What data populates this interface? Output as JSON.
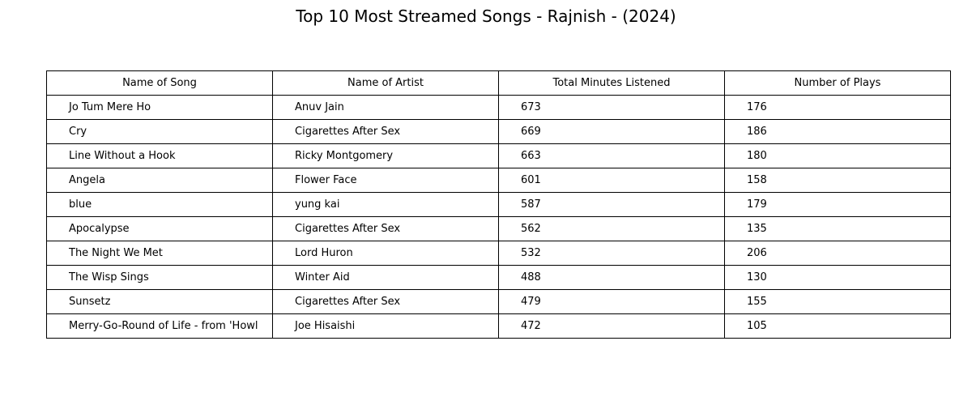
{
  "chart_data": {
    "type": "table",
    "title": "Top 10 Most Streamed Songs - Rajnish - (2024)",
    "columns": [
      "Name of Song",
      "Name of Artist",
      "Total Minutes Listened",
      "Number of Plays"
    ],
    "rows": [
      [
        "Jo Tum Mere Ho",
        "Anuv Jain",
        "673",
        "176"
      ],
      [
        "Cry",
        "Cigarettes After Sex",
        "669",
        "186"
      ],
      [
        "Line Without a Hook",
        "Ricky Montgomery",
        "663",
        "180"
      ],
      [
        "Angela",
        "Flower Face",
        "601",
        "158"
      ],
      [
        "blue",
        "yung kai",
        "587",
        "179"
      ],
      [
        "Apocalypse",
        "Cigarettes After Sex",
        "562",
        "135"
      ],
      [
        "The Night We Met",
        "Lord Huron",
        "532",
        "206"
      ],
      [
        "The Wisp Sings",
        "Winter Aid",
        "488",
        "130"
      ],
      [
        "Sunsetz",
        "Cigarettes After Sex",
        "479",
        "155"
      ],
      [
        "Merry-Go-Round of Life - from 'Howl",
        "Joe Hisaishi",
        "472",
        "105"
      ]
    ]
  }
}
